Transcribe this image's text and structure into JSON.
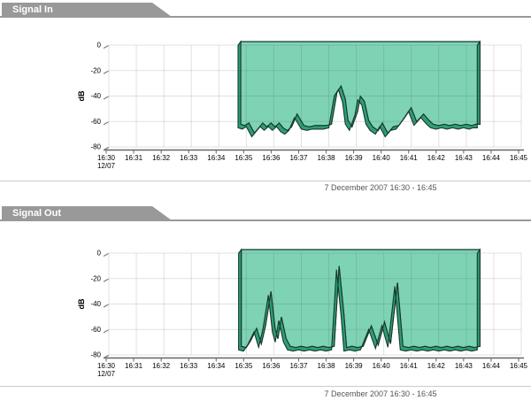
{
  "charts": [
    {
      "header": "Signal In",
      "date_label": "12/07",
      "caption": "7 December 2007 16:30 - 16:45"
    },
    {
      "header": "Signal Out",
      "date_label": "12/07",
      "caption": "7 December 2007 16:30 - 16:45"
    }
  ],
  "chart_data": [
    {
      "type": "area",
      "title": "Signal In",
      "ylabel": "dB",
      "ylim": [
        -80,
        0
      ],
      "y_ticks": [
        0,
        -20,
        -40,
        -60,
        -80
      ],
      "x_tick_labels": [
        "16:30",
        "16:31",
        "16:32",
        "16:33",
        "16:34",
        "16:35",
        "16:36",
        "16:37",
        "16:38",
        "16:39",
        "16:40",
        "16:41",
        "16:42",
        "16:43",
        "16:44",
        "16:45"
      ],
      "x_date_label": "12/07",
      "x_window": "16:30 - 16:45",
      "x_unit": "minutes after 16:30",
      "grid": true,
      "legend": "none",
      "style_3d": true,
      "colors": {
        "fill": "#7ED3B5",
        "depth": "#2F9E78",
        "outline": "#17392B"
      },
      "series": [
        {
          "name": "Signal In",
          "unit": "dB",
          "points": [
            [
              4.7,
              -65
            ],
            [
              4.85,
              -66
            ],
            [
              5.0,
              -64
            ],
            [
              5.2,
              -72
            ],
            [
              5.35,
              -68
            ],
            [
              5.5,
              -64
            ],
            [
              5.65,
              -67
            ],
            [
              5.8,
              -64
            ],
            [
              5.95,
              -67
            ],
            [
              6.1,
              -64
            ],
            [
              6.25,
              -68
            ],
            [
              6.4,
              -70
            ],
            [
              6.55,
              -67
            ],
            [
              6.75,
              -57
            ],
            [
              7.0,
              -66
            ],
            [
              7.2,
              -67
            ],
            [
              7.4,
              -66
            ],
            [
              7.6,
              -66
            ],
            [
              7.8,
              -66
            ],
            [
              8.0,
              -65
            ],
            [
              8.2,
              -40
            ],
            [
              8.35,
              -35
            ],
            [
              8.5,
              -45
            ],
            [
              8.6,
              -62
            ],
            [
              8.75,
              -67
            ],
            [
              8.95,
              -55
            ],
            [
              9.05,
              -43
            ],
            [
              9.2,
              -47
            ],
            [
              9.35,
              -62
            ],
            [
              9.5,
              -67
            ],
            [
              9.7,
              -70
            ],
            [
              9.85,
              -64
            ],
            [
              10.05,
              -72
            ],
            [
              10.25,
              -67
            ],
            [
              10.45,
              -66
            ],
            [
              10.65,
              -60
            ],
            [
              10.9,
              -52
            ],
            [
              11.1,
              -63
            ],
            [
              11.35,
              -57
            ],
            [
              11.55,
              -62
            ],
            [
              11.7,
              -65
            ],
            [
              11.9,
              -66
            ],
            [
              12.1,
              -65
            ],
            [
              12.3,
              -66
            ],
            [
              12.5,
              -65
            ],
            [
              12.7,
              -66
            ],
            [
              12.9,
              -65
            ],
            [
              13.1,
              -66
            ],
            [
              13.25,
              -65
            ],
            [
              13.4,
              -65
            ]
          ]
        }
      ]
    },
    {
      "type": "area",
      "title": "Signal Out",
      "ylabel": "dB",
      "ylim": [
        -80,
        0
      ],
      "y_ticks": [
        0,
        -20,
        -40,
        -60,
        -80
      ],
      "x_tick_labels": [
        "16:30",
        "16:31",
        "16:32",
        "16:33",
        "16:34",
        "16:35",
        "16:36",
        "16:37",
        "16:38",
        "16:39",
        "16:40",
        "16:41",
        "16:42",
        "16:43",
        "16:44",
        "16:45"
      ],
      "x_date_label": "12/07",
      "x_window": "16:30 - 16:45",
      "x_unit": "minutes after 16:30",
      "grid": true,
      "legend": "none",
      "style_3d": true,
      "colors": {
        "fill": "#7ED3B5",
        "depth": "#2F9E78",
        "outline": "#17392B"
      },
      "series": [
        {
          "name": "Signal Out",
          "unit": "dB",
          "points": [
            [
              4.72,
              -76
            ],
            [
              4.9,
              -77
            ],
            [
              5.05,
              -72
            ],
            [
              5.28,
              -62
            ],
            [
              5.45,
              -74
            ],
            [
              5.6,
              -60
            ],
            [
              5.8,
              -33
            ],
            [
              5.95,
              -62
            ],
            [
              6.05,
              -70
            ],
            [
              6.18,
              -53
            ],
            [
              6.35,
              -70
            ],
            [
              6.5,
              -76
            ],
            [
              6.7,
              -77
            ],
            [
              6.9,
              -76
            ],
            [
              7.1,
              -77
            ],
            [
              7.3,
              -76
            ],
            [
              7.5,
              -77
            ],
            [
              7.7,
              -76
            ],
            [
              7.9,
              -77
            ],
            [
              8.1,
              -76
            ],
            [
              8.28,
              -13
            ],
            [
              8.45,
              -50
            ],
            [
              8.55,
              -77
            ],
            [
              8.75,
              -76
            ],
            [
              8.95,
              -77
            ],
            [
              9.15,
              -76
            ],
            [
              9.45,
              -60
            ],
            [
              9.7,
              -75
            ],
            [
              9.93,
              -57
            ],
            [
              10.15,
              -74
            ],
            [
              10.4,
              -26
            ],
            [
              10.6,
              -76
            ],
            [
              10.8,
              -77
            ],
            [
              11.0,
              -76
            ],
            [
              11.2,
              -77
            ],
            [
              11.4,
              -76
            ],
            [
              11.6,
              -77
            ],
            [
              11.8,
              -76
            ],
            [
              12.0,
              -77
            ],
            [
              12.2,
              -76
            ],
            [
              12.4,
              -77
            ],
            [
              12.6,
              -76
            ],
            [
              12.8,
              -77
            ],
            [
              13.0,
              -76
            ],
            [
              13.2,
              -77
            ],
            [
              13.4,
              -76
            ]
          ]
        }
      ]
    }
  ]
}
